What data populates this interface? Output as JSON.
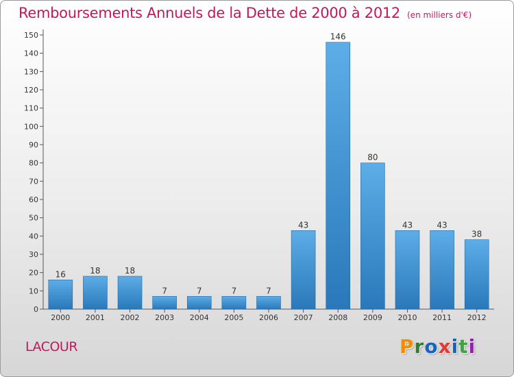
{
  "header": {
    "title": "Remboursements Annuels de la Dette de 2000 à 2012",
    "subtitle": "(en milliers d'€)"
  },
  "commune": "LACOUR",
  "logo": {
    "text": "Proxiti",
    "letter_colors": [
      "#f28c00",
      "#2e7d32",
      "#1565c0",
      "#e53935",
      "#1565c0",
      "#43a047",
      "#8e24aa"
    ]
  },
  "colors": {
    "title": "#c2185b",
    "bar_light": "#5dade8",
    "bar_dark": "#2a78b9",
    "axis": "#555555",
    "grid": "#bdbdbd"
  },
  "chart_data": {
    "type": "bar",
    "title": "Remboursements Annuels de la Dette de 2000 à 2012",
    "subtitle": "(en milliers d'€)",
    "xlabel": "",
    "ylabel": "",
    "categories": [
      "2000",
      "2001",
      "2002",
      "2003",
      "2004",
      "2005",
      "2006",
      "2007",
      "2008",
      "2009",
      "2010",
      "2011",
      "2012"
    ],
    "values": [
      16,
      18,
      18,
      7,
      7,
      7,
      7,
      43,
      146,
      80,
      43,
      43,
      38
    ],
    "data_labels": [
      "16",
      "18",
      "18",
      "7",
      "7",
      "7",
      "7",
      "43",
      "146",
      "80",
      "43",
      "43",
      "38"
    ],
    "ylim": [
      0,
      150
    ],
    "yticks": [
      0,
      10,
      20,
      30,
      40,
      50,
      60,
      70,
      80,
      90,
      100,
      110,
      120,
      130,
      140,
      150
    ],
    "grid": false,
    "legend": "none"
  }
}
